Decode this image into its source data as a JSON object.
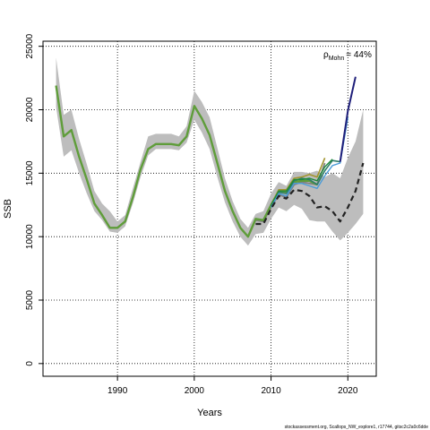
{
  "chart_data": {
    "type": "line",
    "xlabel": "Years",
    "ylabel": "SSB",
    "xlim": [
      1980.3,
      2023.7
    ],
    "ylim": [
      -1000,
      25400
    ],
    "x_ticks": [
      1990,
      2000,
      2010,
      2020
    ],
    "y_ticks": [
      0,
      5000,
      10000,
      15000,
      20000,
      25000
    ],
    "grid": "dotted",
    "annotation": {
      "rho_symbol": "ρ",
      "rho_subscript": "Mohn",
      "rho_value": "= 44%"
    },
    "confidence_band": {
      "x": [
        1982,
        1983,
        1984,
        1985,
        1986,
        1987,
        1988,
        1989,
        1990,
        1991,
        1992,
        1993,
        1994,
        1995,
        1996,
        1997,
        1998,
        1999,
        2000,
        2001,
        2002,
        2003,
        2004,
        2005,
        2006,
        2007,
        2008,
        2009,
        2010,
        2011,
        2012,
        2013,
        2014,
        2015,
        2016,
        2017,
        2018,
        2019,
        2020,
        2021,
        2022
      ],
      "lower": [
        20200,
        16300,
        16800,
        15000,
        13400,
        12000,
        11300,
        10400,
        10300,
        10800,
        12600,
        14700,
        16400,
        16900,
        16900,
        16900,
        16800,
        17400,
        19200,
        18200,
        16900,
        14700,
        12700,
        11200,
        10000,
        9300,
        10200,
        10300,
        11400,
        12300,
        12000,
        12500,
        12200,
        11300,
        11200,
        11200,
        10400,
        9700,
        10300,
        11000,
        11800
      ],
      "upper": [
        24100,
        19600,
        20000,
        17700,
        15700,
        13600,
        12600,
        12000,
        11200,
        11700,
        13800,
        15900,
        17900,
        18100,
        18100,
        18100,
        17900,
        18700,
        21500,
        20600,
        19400,
        17000,
        14600,
        12800,
        11400,
        10700,
        11800,
        12000,
        13400,
        14300,
        14000,
        15100,
        15100,
        15000,
        15200,
        14700,
        15000,
        14600,
        16200,
        17500,
        20000
      ]
    },
    "series": [
      {
        "color": "#808080",
        "width": 1.8,
        "dash": "",
        "x": [
          1982,
          1983,
          1984,
          1985,
          1986,
          1987,
          1988,
          1989,
          1990,
          1991,
          1992,
          1993,
          1994,
          1995,
          1996,
          1997,
          1998,
          1999,
          2000,
          2001,
          2002,
          2003,
          2004,
          2005,
          2006,
          2007,
          2008,
          2009,
          2010,
          2011,
          2012,
          2013,
          2014,
          2015,
          2016,
          2017
        ],
        "values": [
          21900,
          17900,
          18400,
          16300,
          14500,
          12600,
          11700,
          10700,
          10700,
          11200,
          13100,
          15300,
          16900,
          17300,
          17300,
          17300,
          17200,
          17900,
          20300,
          19300,
          18000,
          15800,
          13600,
          12000,
          10700,
          10000,
          11300,
          11200,
          12300,
          13300,
          13100,
          14100,
          14300,
          14200,
          14100,
          15800
        ]
      },
      {
        "color": "#5f9d3a",
        "width": 2.4,
        "dash": "",
        "x": [
          1982,
          1983,
          1984,
          1985,
          1986,
          1987,
          1988,
          1989,
          1990,
          1991,
          1992,
          1993,
          1994,
          1995,
          1996,
          1997,
          1998,
          1999,
          2000,
          2001,
          2002,
          2003,
          2004,
          2005,
          2006,
          2007,
          2008,
          2009,
          2010,
          2011,
          2012,
          2013,
          2014,
          2015,
          2016
        ],
        "values": [
          21900,
          17900,
          18400,
          16300,
          14500,
          12600,
          11700,
          10700,
          10700,
          11200,
          13100,
          15300,
          16900,
          17300,
          17300,
          17300,
          17200,
          17900,
          20300,
          19300,
          18000,
          15800,
          13600,
          12000,
          10700,
          10000,
          11400,
          11300,
          12500,
          13600,
          13500,
          14300,
          14400,
          14400,
          14100
        ]
      },
      {
        "color": "#a2952f",
        "width": 1.6,
        "dash": "",
        "x": [
          2010,
          2011,
          2012,
          2013,
          2014,
          2015,
          2016,
          2017
        ],
        "values": [
          12500,
          13700,
          13700,
          14600,
          14700,
          14900,
          14700,
          16200
        ]
      },
      {
        "color": "#2e7d6b",
        "width": 1.6,
        "dash": "",
        "x": [
          2010,
          2011,
          2012,
          2013,
          2014,
          2015,
          2016,
          2017,
          2018,
          2019
        ],
        "values": [
          12400,
          13500,
          13400,
          14400,
          14600,
          14500,
          14100,
          15200,
          16000,
          15900
        ]
      },
      {
        "color": "#1d8a3a",
        "width": 1.4,
        "dash": "",
        "x": [
          2010,
          2011,
          2012,
          2013,
          2014,
          2015,
          2016,
          2017,
          2018
        ],
        "values": [
          12500,
          13600,
          13600,
          14500,
          14500,
          14600,
          14400,
          15500,
          16100
        ]
      },
      {
        "color": "#4a9bd8",
        "width": 1.4,
        "dash": "",
        "x": [
          2010,
          2011,
          2012,
          2013,
          2014,
          2015,
          2016,
          2017,
          2018,
          2019,
          2020
        ],
        "values": [
          12300,
          13400,
          13200,
          14200,
          14200,
          14000,
          13800,
          14800,
          15600,
          15800,
          19400
        ]
      },
      {
        "color": "#1f1f7a",
        "width": 2.0,
        "dash": "",
        "x": [
          2019,
          2020,
          2021
        ],
        "values": [
          15900,
          19900,
          22600
        ]
      },
      {
        "color": "#222222",
        "width": 2.2,
        "dash": "6,4",
        "x": [
          2008,
          2009,
          2010,
          2011,
          2012,
          2013,
          2014,
          2015,
          2016,
          2017,
          2018,
          2019,
          2020,
          2021,
          2022
        ],
        "values": [
          11000,
          11000,
          12200,
          13200,
          13000,
          13700,
          13600,
          13200,
          12300,
          12400,
          12000,
          11200,
          12300,
          13600,
          15800
        ]
      }
    ]
  },
  "footer_text": "stockassessment.org, Scallops_NW_explore1, r17744, gitsc2c2a0c6dde"
}
